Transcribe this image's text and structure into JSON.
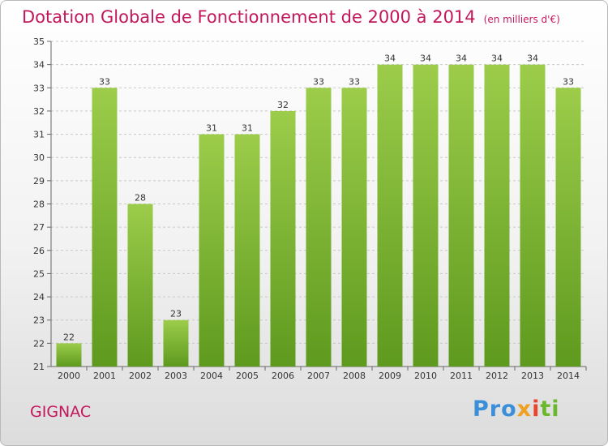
{
  "title": "Dotation Globale de Fonctionnement de 2000 à 2014",
  "subtitle": "(en milliers d'€)",
  "place": "GIGNAC",
  "logo": {
    "p1": "Pro",
    "p2": "x",
    "p3": "i",
    "p4": "ti"
  },
  "colors": {
    "bar_light": "#9ccc4a",
    "bar_dark": "#5e9a1e",
    "title": "#c2185b"
  },
  "chart_data": {
    "type": "bar",
    "categories": [
      "2000",
      "2001",
      "2002",
      "2003",
      "2004",
      "2005",
      "2006",
      "2007",
      "2008",
      "2009",
      "2010",
      "2011",
      "2012",
      "2013",
      "2014"
    ],
    "values": [
      22,
      33,
      28,
      23,
      31,
      31,
      32,
      33,
      33,
      34,
      34,
      34,
      34,
      34,
      33
    ],
    "ylim": [
      21,
      35
    ],
    "yticks": [
      21,
      22,
      23,
      24,
      25,
      26,
      27,
      28,
      29,
      30,
      31,
      32,
      33,
      34,
      35
    ],
    "grid": true,
    "legend": "none"
  }
}
